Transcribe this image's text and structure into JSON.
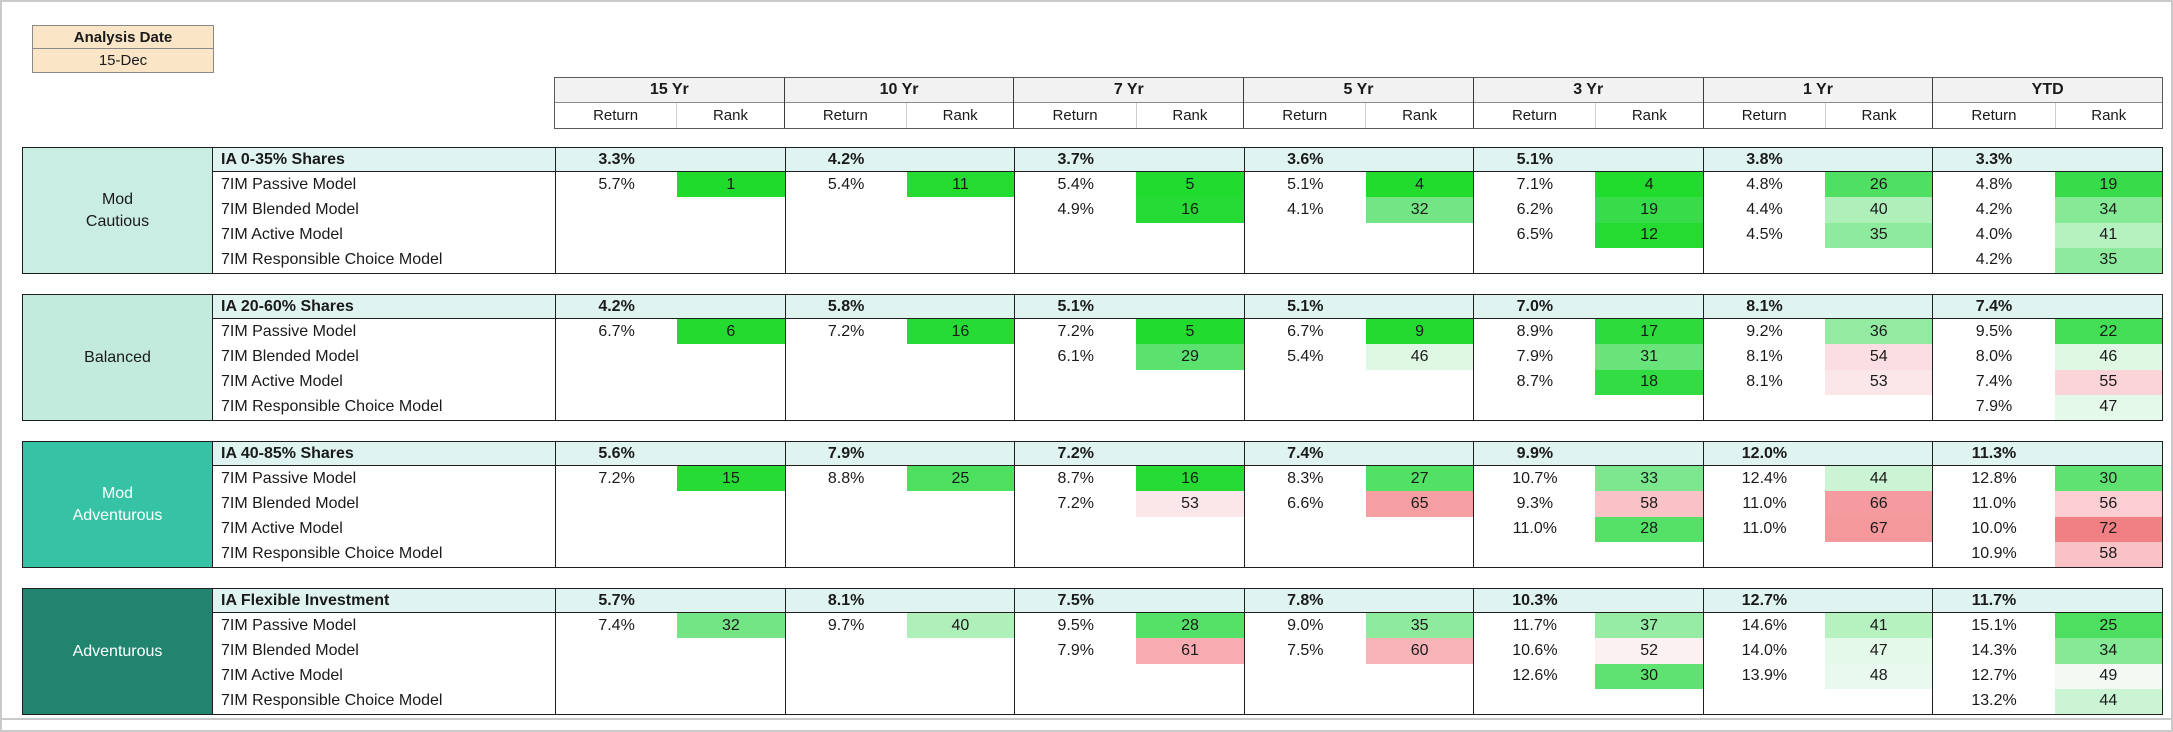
{
  "analysis_date": {
    "label": "Analysis Date",
    "value": "15-Dec",
    "box_color": "#FBE5C7"
  },
  "header": {
    "return_label": "Return",
    "rank_label": "Rank"
  },
  "periods": [
    "15 Yr",
    "10 Yr",
    "7 Yr",
    "5 Yr",
    "3 Yr",
    "1 Yr",
    "YTD"
  ],
  "colors": {
    "benchmark_row": "#DFF4F1",
    "header_band": "#F2F2F2",
    "rank_color_stops": [
      [
        1,
        "#1FDB2B"
      ],
      [
        16,
        "#27DB35"
      ],
      [
        19,
        "#38DC4A"
      ],
      [
        23,
        "#47DE5A"
      ],
      [
        28,
        "#55E068"
      ],
      [
        30,
        "#60E272"
      ],
      [
        33,
        "#7CE78E"
      ],
      [
        35,
        "#8EEA9C"
      ],
      [
        37,
        "#97ECA5"
      ],
      [
        40,
        "#AFEFBA"
      ],
      [
        42,
        "#BCF2C6"
      ],
      [
        44,
        "#CBF4D4"
      ],
      [
        46,
        "#DEF8E4"
      ],
      [
        48,
        "#EAF9EE"
      ],
      [
        50,
        "#FBFAFA"
      ],
      [
        52,
        "#FCF1F2"
      ],
      [
        55,
        "#FAD4D8"
      ],
      [
        58,
        "#F9C2C7"
      ],
      [
        61,
        "#F7ACB1"
      ],
      [
        67,
        "#F4989C"
      ],
      [
        72,
        "#F18085"
      ],
      [
        100,
        "#E8494F"
      ]
    ]
  },
  "sections": [
    {
      "category": "Mod\nCautious",
      "category_color": "#C9EDE3",
      "category_text_color": "#1a1a1a",
      "benchmark": {
        "name": "IA 0-35% Shares",
        "returns": [
          "3.3%",
          "4.2%",
          "3.7%",
          "3.6%",
          "5.1%",
          "3.8%",
          "3.3%"
        ]
      },
      "rows": [
        {
          "name": "7IM Passive Model",
          "cells": [
            {
              "r": "5.7%",
              "k": 1
            },
            {
              "r": "5.4%",
              "k": 11
            },
            {
              "r": "5.4%",
              "k": 5
            },
            {
              "r": "5.1%",
              "k": 4
            },
            {
              "r": "7.1%",
              "k": 4
            },
            {
              "r": "4.8%",
              "k": 26
            },
            {
              "r": "4.8%",
              "k": 19
            }
          ]
        },
        {
          "name": "7IM Blended Model",
          "cells": [
            null,
            null,
            {
              "r": "4.9%",
              "k": 16
            },
            {
              "r": "4.1%",
              "k": 32
            },
            {
              "r": "6.2%",
              "k": 19
            },
            {
              "r": "4.4%",
              "k": 40
            },
            {
              "r": "4.2%",
              "k": 34
            }
          ]
        },
        {
          "name": "7IM Active Model",
          "cells": [
            null,
            null,
            null,
            null,
            {
              "r": "6.5%",
              "k": 12
            },
            {
              "r": "4.5%",
              "k": 35
            },
            {
              "r": "4.0%",
              "k": 41
            }
          ]
        },
        {
          "name": "7IM Responsible Choice Model",
          "cells": [
            null,
            null,
            null,
            null,
            null,
            null,
            {
              "r": "4.2%",
              "k": 35
            }
          ]
        }
      ]
    },
    {
      "category": "Balanced",
      "category_color": "#C2EBDE",
      "category_text_color": "#1a1a1a",
      "benchmark": {
        "name": "IA 20-60% Shares",
        "returns": [
          "4.2%",
          "5.8%",
          "5.1%",
          "5.1%",
          "7.0%",
          "8.1%",
          "7.4%"
        ]
      },
      "rows": [
        {
          "name": "7IM Passive Model",
          "cells": [
            {
              "r": "6.7%",
              "k": 6
            },
            {
              "r": "7.2%",
              "k": 16
            },
            {
              "r": "7.2%",
              "k": 5
            },
            {
              "r": "6.7%",
              "k": 9
            },
            {
              "r": "8.9%",
              "k": 17
            },
            {
              "r": "9.2%",
              "k": 36
            },
            {
              "r": "9.5%",
              "k": 22
            }
          ]
        },
        {
          "name": "7IM Blended Model",
          "cells": [
            null,
            null,
            {
              "r": "6.1%",
              "k": 29
            },
            {
              "r": "5.4%",
              "k": 46
            },
            {
              "r": "7.9%",
              "k": 31
            },
            {
              "r": "8.1%",
              "k": 54
            },
            {
              "r": "8.0%",
              "k": 46
            }
          ]
        },
        {
          "name": "7IM Active Model",
          "cells": [
            null,
            null,
            null,
            null,
            {
              "r": "8.7%",
              "k": 18
            },
            {
              "r": "8.1%",
              "k": 53
            },
            {
              "r": "7.4%",
              "k": 55
            }
          ]
        },
        {
          "name": "7IM Responsible Choice Model",
          "cells": [
            null,
            null,
            null,
            null,
            null,
            null,
            {
              "r": "7.9%",
              "k": 47
            }
          ]
        }
      ]
    },
    {
      "category": "Mod\nAdventurous",
      "category_color": "#36C3A5",
      "category_text_color": "#ffffff",
      "benchmark": {
        "name": "IA 40-85% Shares",
        "returns": [
          "5.6%",
          "7.9%",
          "7.2%",
          "7.4%",
          "9.9%",
          "12.0%",
          "11.3%"
        ]
      },
      "rows": [
        {
          "name": "7IM Passive Model",
          "cells": [
            {
              "r": "7.2%",
              "k": 15
            },
            {
              "r": "8.8%",
              "k": 25
            },
            {
              "r": "8.7%",
              "k": 16
            },
            {
              "r": "8.3%",
              "k": 27
            },
            {
              "r": "10.7%",
              "k": 33
            },
            {
              "r": "12.4%",
              "k": 44
            },
            {
              "r": "12.8%",
              "k": 30
            }
          ]
        },
        {
          "name": "7IM Blended Model",
          "cells": [
            null,
            null,
            {
              "r": "7.2%",
              "k": 53
            },
            {
              "r": "6.6%",
              "k": 65
            },
            {
              "r": "9.3%",
              "k": 58
            },
            {
              "r": "11.0%",
              "k": 66
            },
            {
              "r": "11.0%",
              "k": 56
            }
          ]
        },
        {
          "name": "7IM Active Model",
          "cells": [
            null,
            null,
            null,
            null,
            {
              "r": "11.0%",
              "k": 28
            },
            {
              "r": "11.0%",
              "k": 67
            },
            {
              "r": "10.0%",
              "k": 72
            }
          ]
        },
        {
          "name": "7IM Responsible Choice Model",
          "cells": [
            null,
            null,
            null,
            null,
            null,
            null,
            {
              "r": "10.9%",
              "k": 58
            }
          ]
        }
      ]
    },
    {
      "category": "Adventurous",
      "category_color": "#21846F",
      "category_text_color": "#ffffff",
      "benchmark": {
        "name": "IA Flexible Investment",
        "returns": [
          "5.7%",
          "8.1%",
          "7.5%",
          "7.8%",
          "10.3%",
          "12.7%",
          "11.7%"
        ]
      },
      "rows": [
        {
          "name": "7IM Passive Model",
          "cells": [
            {
              "r": "7.4%",
              "k": 32
            },
            {
              "r": "9.7%",
              "k": 40
            },
            {
              "r": "9.5%",
              "k": 28
            },
            {
              "r": "9.0%",
              "k": 35
            },
            {
              "r": "11.7%",
              "k": 37
            },
            {
              "r": "14.6%",
              "k": 41
            },
            {
              "r": "15.1%",
              "k": 25
            }
          ]
        },
        {
          "name": "7IM Blended Model",
          "cells": [
            null,
            null,
            {
              "r": "7.9%",
              "k": 61
            },
            {
              "r": "7.5%",
              "k": 60
            },
            {
              "r": "10.6%",
              "k": 52
            },
            {
              "r": "14.0%",
              "k": 47
            },
            {
              "r": "14.3%",
              "k": 34
            }
          ]
        },
        {
          "name": "7IM Active Model",
          "cells": [
            null,
            null,
            null,
            null,
            {
              "r": "12.6%",
              "k": 30
            },
            {
              "r": "13.9%",
              "k": 48
            },
            {
              "r": "12.7%",
              "k": 49
            }
          ]
        },
        {
          "name": "7IM Responsible Choice Model",
          "cells": [
            null,
            null,
            null,
            null,
            null,
            null,
            {
              "r": "13.2%",
              "k": 44
            }
          ]
        }
      ]
    }
  ]
}
